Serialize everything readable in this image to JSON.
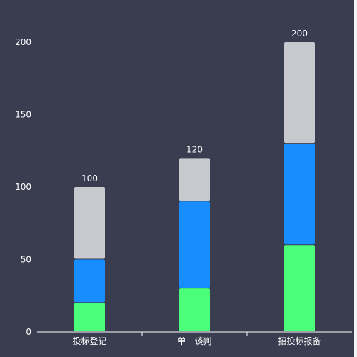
{
  "chart_data": {
    "type": "bar",
    "stacked": true,
    "categories": [
      "投标登记",
      "单一谈判",
      "招投标报备"
    ],
    "series": [
      {
        "values": [
          20,
          30,
          60
        ],
        "color": "#4cff7a"
      },
      {
        "values": [
          30,
          60,
          70
        ],
        "color": "#188dff"
      },
      {
        "values": [
          50,
          30,
          70
        ],
        "color": "#c8c9ce"
      }
    ],
    "totals": [
      "100",
      "120",
      "200"
    ],
    "ylim": [
      0,
      220
    ],
    "yticks": [
      "0",
      "50",
      "100",
      "150",
      "200"
    ],
    "grid": false,
    "title": "",
    "xlabel": "",
    "ylabel": ""
  },
  "colors": {
    "panel_background": "#393d4f",
    "page_background": "#f3f4f7",
    "axis": "#ffffff",
    "text": "#ffffff"
  }
}
